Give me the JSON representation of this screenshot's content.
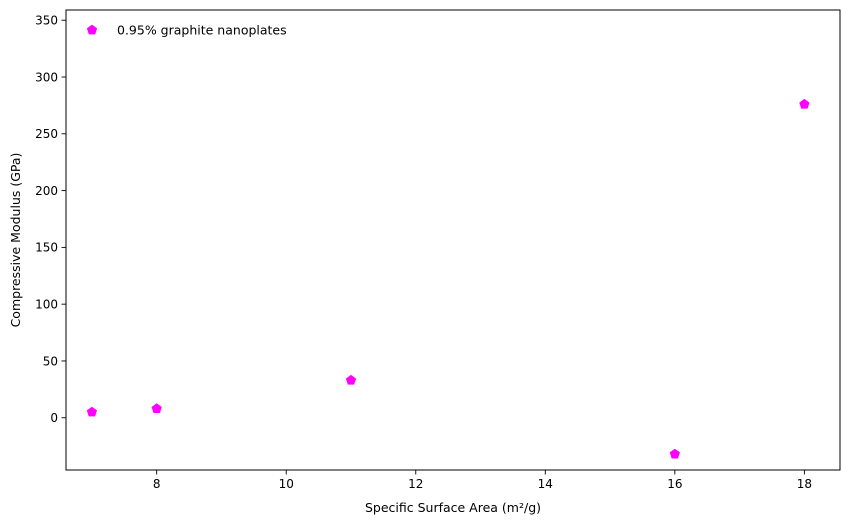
{
  "chart_data": {
    "type": "scatter",
    "title": "",
    "xlabel": "Specific Surface Area (m²/g)",
    "ylabel": "Compressive Modulus (GPa)",
    "xlim": [
      6.6,
      18.55
    ],
    "ylim": [
      -46,
      359
    ],
    "xticks": [
      8,
      10,
      12,
      14,
      16,
      18
    ],
    "yticks": [
      0,
      50,
      100,
      150,
      200,
      250,
      300,
      350
    ],
    "grid": false,
    "legend_position": "top-left",
    "series": [
      {
        "name": "0.95% graphite nanoplates",
        "marker": "pentagon",
        "color": "#ff00ff",
        "x": [
          7,
          8,
          11,
          16,
          18
        ],
        "y": [
          5,
          8,
          33,
          -32,
          276
        ]
      }
    ]
  }
}
